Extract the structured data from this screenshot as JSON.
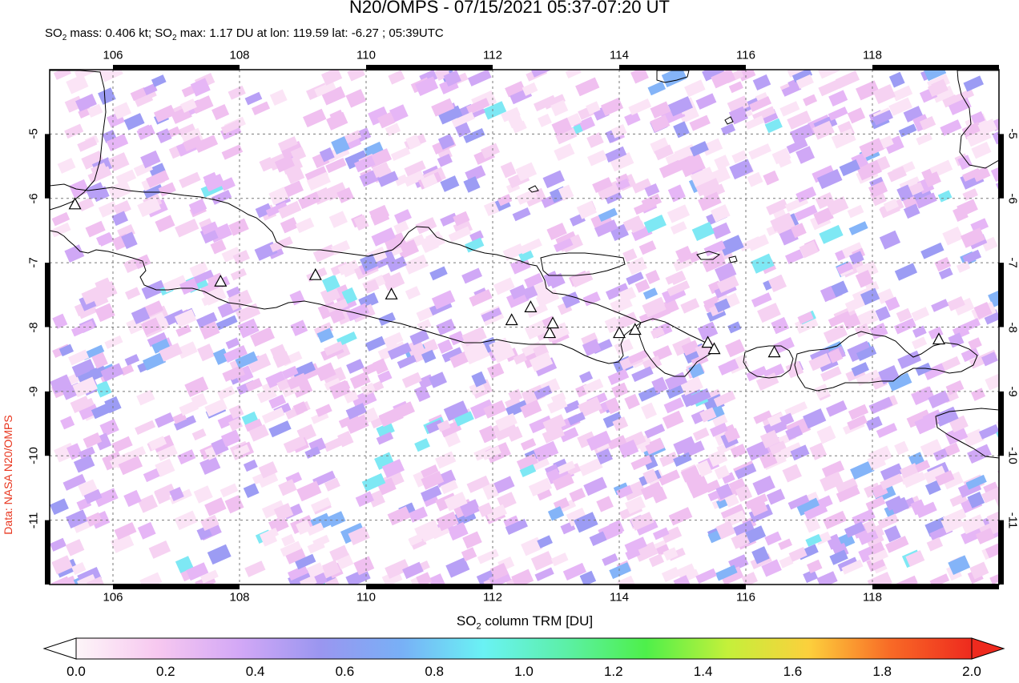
{
  "header": {
    "title": "N20/OMPS - 07/15/2021 05:37-07:20 UT",
    "subtitle_parts": {
      "prefix": "SO",
      "sub1": "2",
      "mid1": " mass: 0.406 kt; SO",
      "sub2": "2",
      "rest": " max: 1.17 DU at lon: 119.59 lat: -6.27 ; 05:39UTC"
    }
  },
  "credit": "Data: NASA N20/OMPS",
  "map": {
    "lon_range": [
      105,
      120
    ],
    "lat_range": [
      -12,
      -4
    ],
    "lon_ticks": [
      "106",
      "108",
      "110",
      "112",
      "114",
      "116",
      "118"
    ],
    "lat_ticks": [
      "-5",
      "-6",
      "-7",
      "-8",
      "-9",
      "-10",
      "-11"
    ],
    "volcano_markers": [
      {
        "lon": 105.4,
        "lat": -6.1
      },
      {
        "lon": 107.7,
        "lat": -7.3
      },
      {
        "lon": 109.2,
        "lat": -7.2
      },
      {
        "lon": 110.4,
        "lat": -7.5
      },
      {
        "lon": 112.3,
        "lat": -7.9
      },
      {
        "lon": 112.6,
        "lat": -7.7
      },
      {
        "lon": 112.9,
        "lat": -8.1
      },
      {
        "lon": 112.95,
        "lat": -7.95
      },
      {
        "lon": 114.0,
        "lat": -8.1
      },
      {
        "lon": 114.25,
        "lat": -8.05
      },
      {
        "lon": 115.4,
        "lat": -8.25
      },
      {
        "lon": 115.5,
        "lat": -8.35
      },
      {
        "lon": 116.45,
        "lat": -8.4
      },
      {
        "lon": 119.05,
        "lat": -8.2
      }
    ]
  },
  "colorbar": {
    "title_prefix": "SO",
    "title_sub": "2",
    "title_rest": " column TRM [DU]",
    "labels": [
      "0.0",
      "0.2",
      "0.4",
      "0.6",
      "0.8",
      "1.0",
      "1.2",
      "1.4",
      "1.6",
      "1.8",
      "2.0"
    ],
    "colors": [
      "#fdf5f8",
      "#f7c8f0",
      "#d3a8f6",
      "#9a96f0",
      "#78b0f6",
      "#6af2f4",
      "#5cf0a8",
      "#4ef04a",
      "#c4f03a",
      "#fcd03c",
      "#f86a26",
      "#ee2a1e"
    ]
  }
}
